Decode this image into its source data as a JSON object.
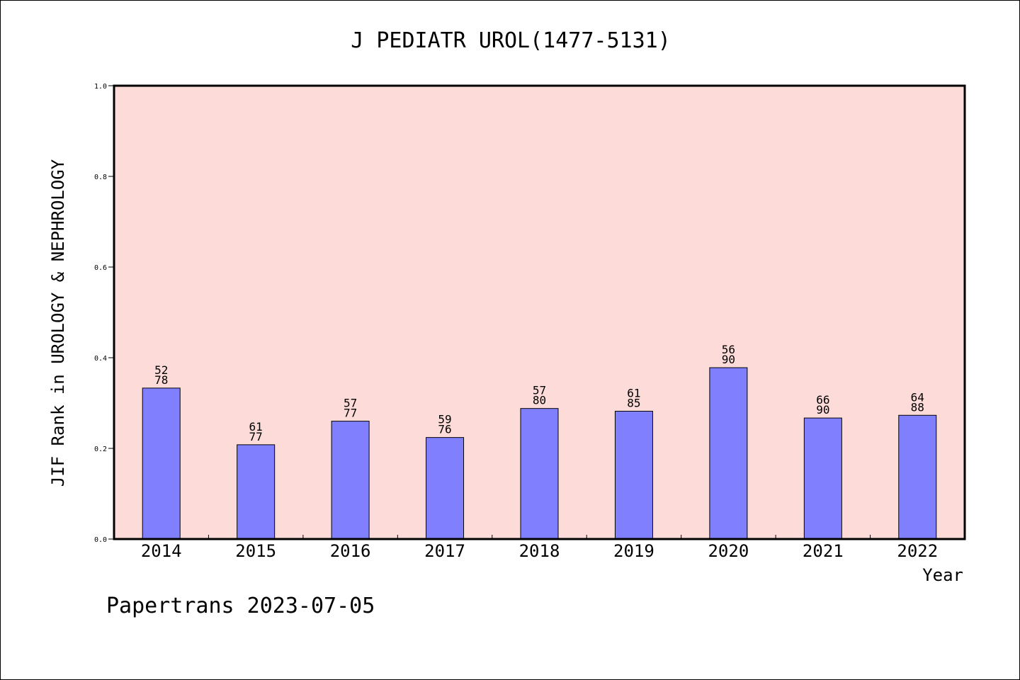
{
  "colors": {
    "plot_background": "#fddbd8",
    "bar_fill": "#8080ff",
    "bar_stroke": "#000000"
  },
  "chart_data": {
    "type": "bar",
    "title": "J PEDIATR UROL(1477-5131)",
    "xlabel": "Year",
    "ylabel": "JIF Rank in UROLOGY & NEPHROLOGY",
    "ylim": [
      0.0,
      1.0
    ],
    "yticks": [
      "0.0",
      "0.2",
      "0.4",
      "0.6",
      "0.8",
      "1.0"
    ],
    "grid": false,
    "categories": [
      "2014",
      "2015",
      "2016",
      "2017",
      "2018",
      "2019",
      "2020",
      "2021",
      "2022"
    ],
    "values": [
      0.333,
      0.208,
      0.26,
      0.224,
      0.288,
      0.282,
      0.378,
      0.267,
      0.273
    ],
    "rank": [
      "52",
      "61",
      "57",
      "59",
      "57",
      "61",
      "56",
      "66",
      "64"
    ],
    "total": [
      "78",
      "77",
      "77",
      "76",
      "80",
      "85",
      "90",
      "90",
      "88"
    ]
  },
  "footer": "Papertrans 2023-07-05"
}
